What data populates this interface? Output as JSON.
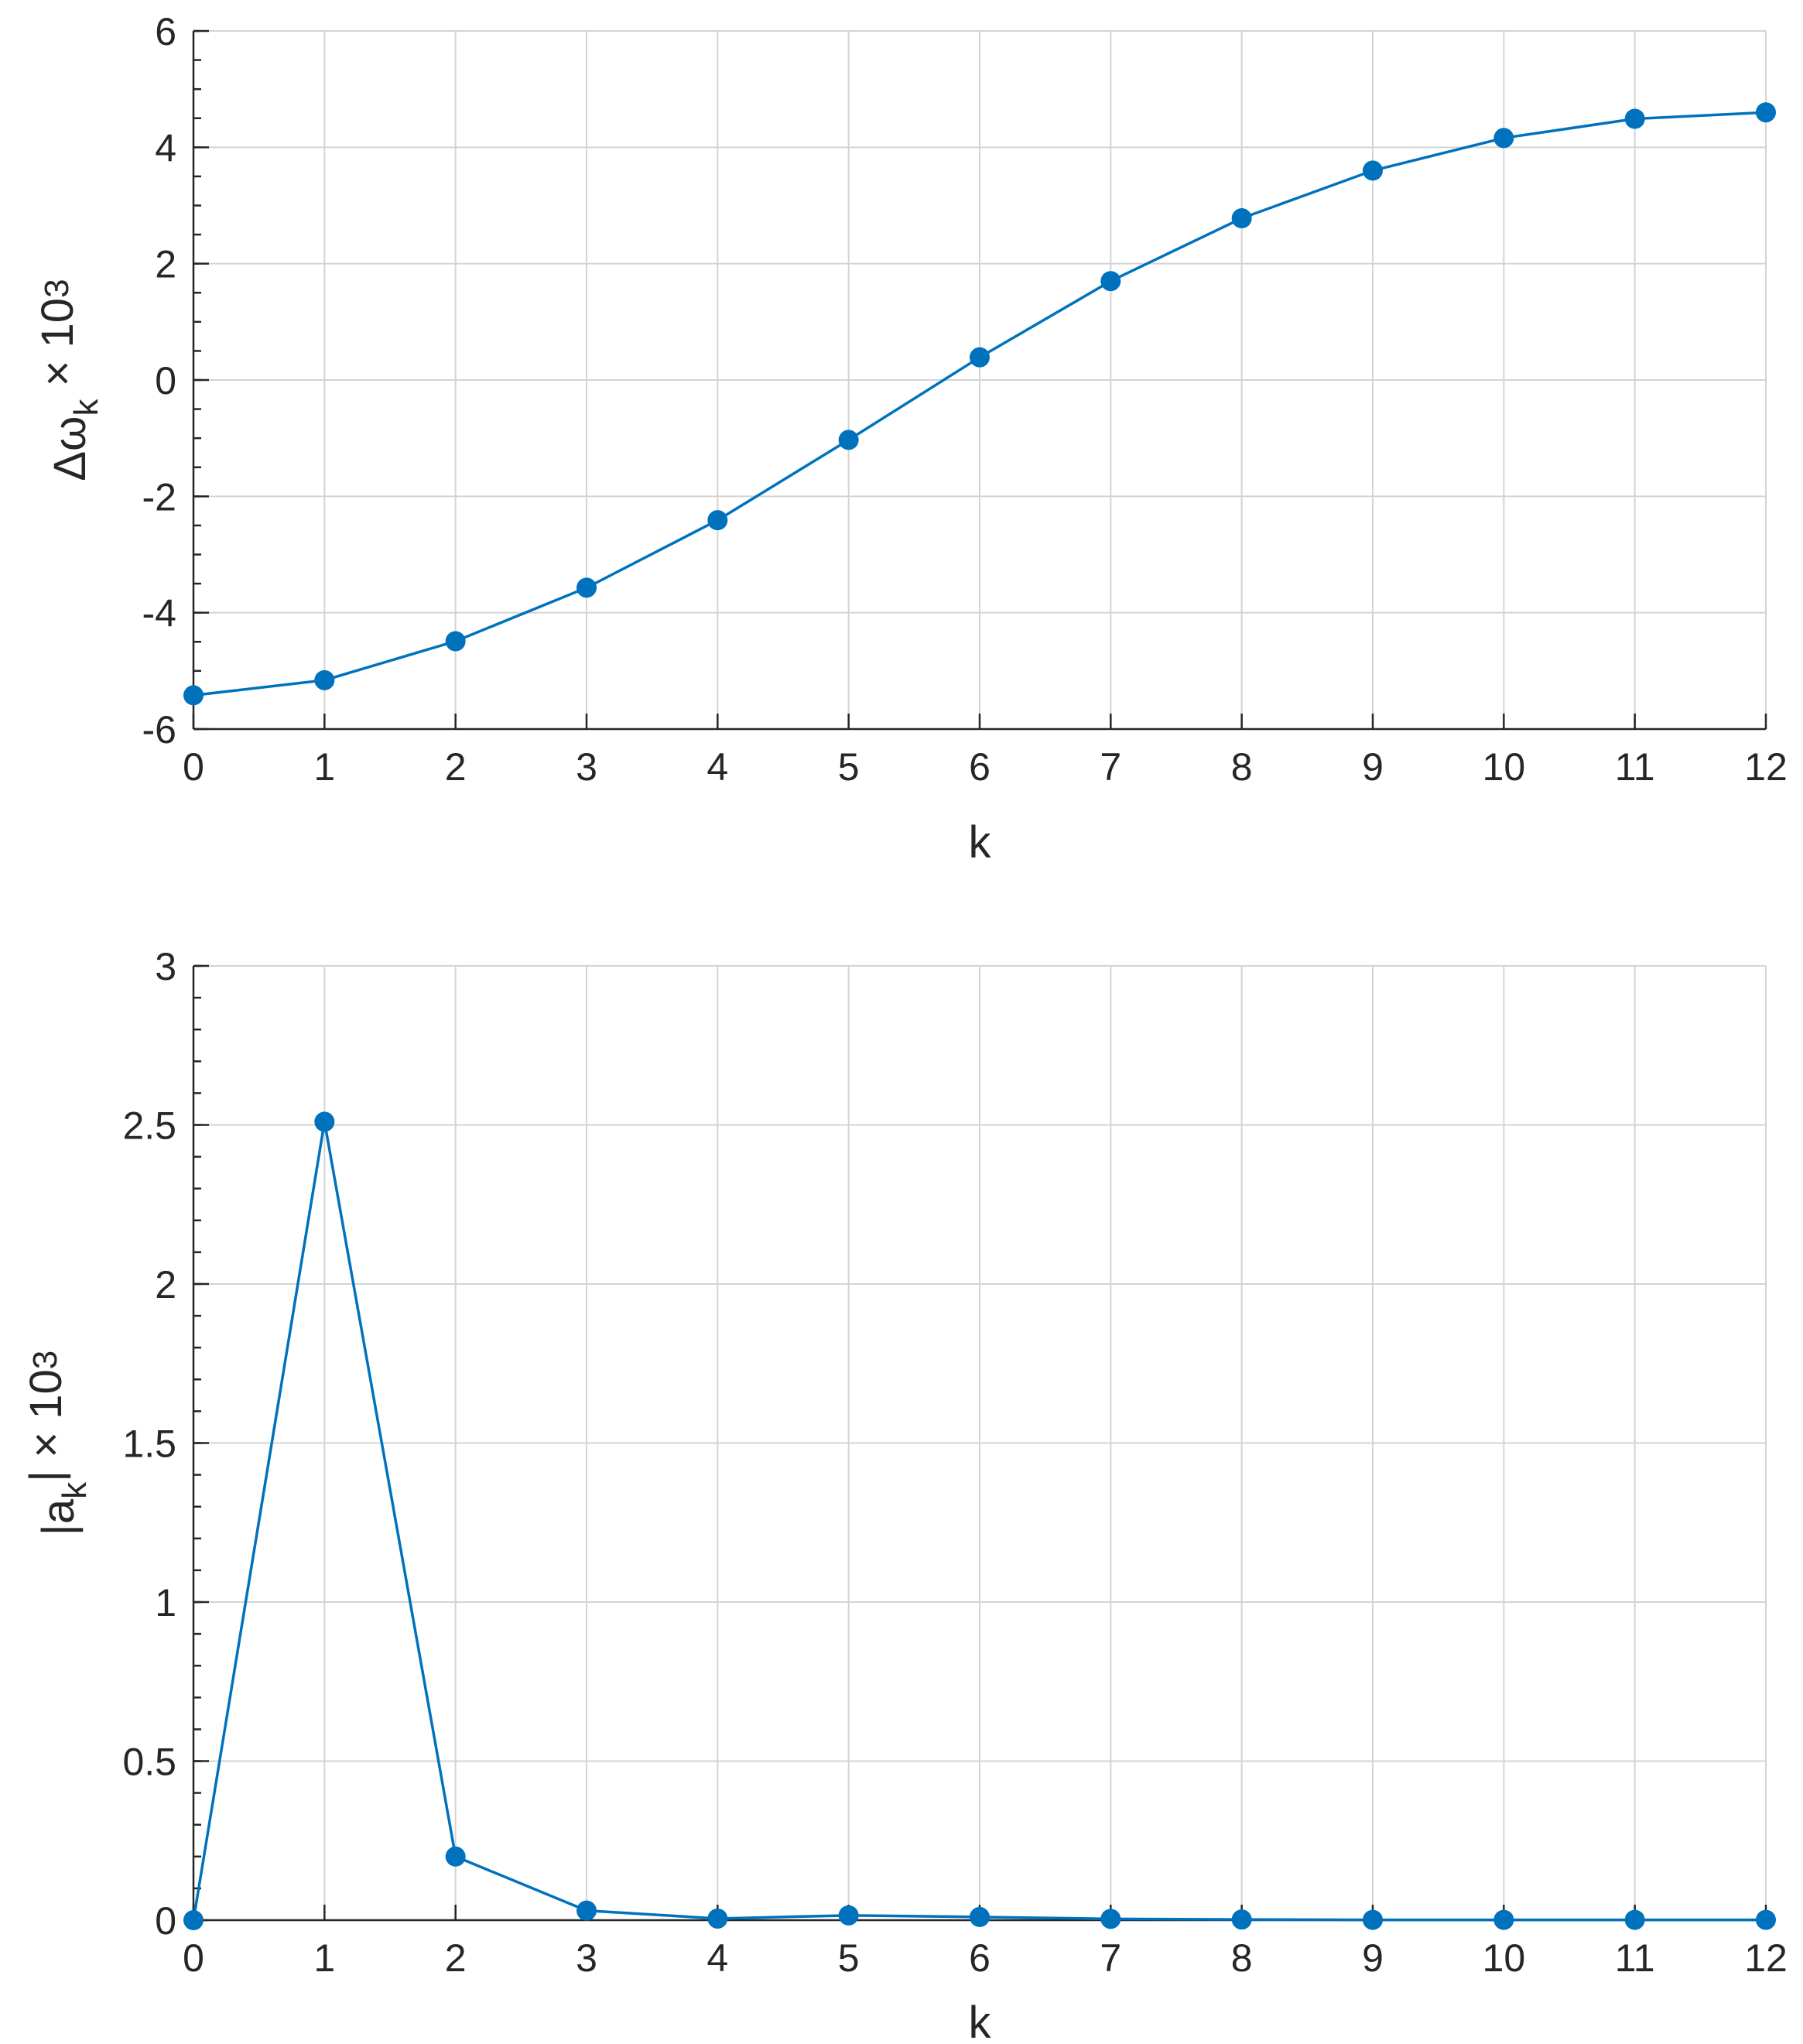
{
  "chart_data": [
    {
      "type": "line",
      "x": [
        0,
        1,
        2,
        3,
        4,
        5,
        6,
        7,
        8,
        9,
        10,
        11,
        12
      ],
      "series": [
        {
          "values": [
            -5.42,
            -5.16,
            -4.49,
            -3.57,
            -2.41,
            -1.03,
            0.39,
            1.7,
            2.78,
            3.6,
            4.16,
            4.49,
            4.6
          ]
        }
      ],
      "xlabel": "k",
      "ylabel": {
        "main": "Δω",
        "sub": "k",
        "suffix": " × 10",
        "sup": "3"
      },
      "xlim": [
        0,
        12
      ],
      "ylim": [
        -6,
        6
      ],
      "xticks": [
        "0",
        "1",
        "2",
        "3",
        "4",
        "5",
        "6",
        "7",
        "8",
        "9",
        "10",
        "11",
        "12"
      ],
      "yticks": [
        "-6",
        "-4",
        "-2",
        "0",
        "2",
        "4",
        "6"
      ],
      "ytick_values": [
        -6,
        -4,
        -2,
        0,
        2,
        4,
        6
      ],
      "minor_y_step": 0.5,
      "grid": true,
      "color": "#0072BD",
      "marker": "circle"
    },
    {
      "type": "line",
      "x": [
        0,
        1,
        2,
        3,
        4,
        5,
        6,
        7,
        8,
        9,
        10,
        11,
        12
      ],
      "series": [
        {
          "values": [
            0,
            2.51,
            0.2,
            0.03,
            0.005,
            0.015,
            0.01,
            0.004,
            0.002,
            0.001,
            0.001,
            0.001,
            0.001
          ]
        }
      ],
      "xlabel": "k",
      "ylabel": {
        "main": "|a",
        "sub": "k",
        "suffix": "| × 10",
        "sup": "3"
      },
      "xlim": [
        0,
        12
      ],
      "ylim": [
        0,
        3
      ],
      "xticks": [
        "0",
        "1",
        "2",
        "3",
        "4",
        "5",
        "6",
        "7",
        "8",
        "9",
        "10",
        "11",
        "12"
      ],
      "yticks": [
        "0",
        "0.5",
        "1",
        "1.5",
        "2",
        "2.5",
        "3"
      ],
      "ytick_values": [
        0,
        0.5,
        1,
        1.5,
        2,
        2.5,
        3
      ],
      "minor_y_step": 0.1,
      "grid": true,
      "color": "#0072BD",
      "marker": "circle"
    }
  ]
}
